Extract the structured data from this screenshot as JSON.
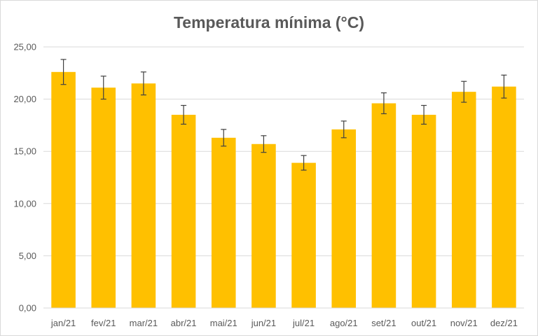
{
  "chart_data": {
    "type": "bar",
    "title": "Temperatura mínima (°C)",
    "xlabel": "",
    "ylabel": "",
    "categories": [
      "jan/21",
      "fev/21",
      "mar/21",
      "abr/21",
      "mai/21",
      "jun/21",
      "jul/21",
      "ago/21",
      "set/21",
      "out/21",
      "nov/21",
      "dez/21"
    ],
    "values": [
      22.6,
      21.1,
      21.5,
      18.5,
      16.3,
      15.7,
      13.9,
      17.1,
      19.6,
      18.5,
      20.7,
      21.2
    ],
    "error": [
      1.2,
      1.1,
      1.1,
      0.9,
      0.8,
      0.8,
      0.7,
      0.8,
      1.0,
      0.9,
      1.0,
      1.1
    ],
    "ylim": [
      0,
      25
    ],
    "yticks": [
      0,
      5,
      10,
      15,
      20,
      25
    ],
    "ytick_labels": [
      "0,00",
      "5,00",
      "10,00",
      "15,00",
      "20,00",
      "25,00"
    ],
    "grid": true,
    "legend": "none",
    "colors": {
      "bar": "#ffc000",
      "error_bar": "#404040",
      "grid": "#d9d9d9",
      "text": "#595959"
    }
  }
}
